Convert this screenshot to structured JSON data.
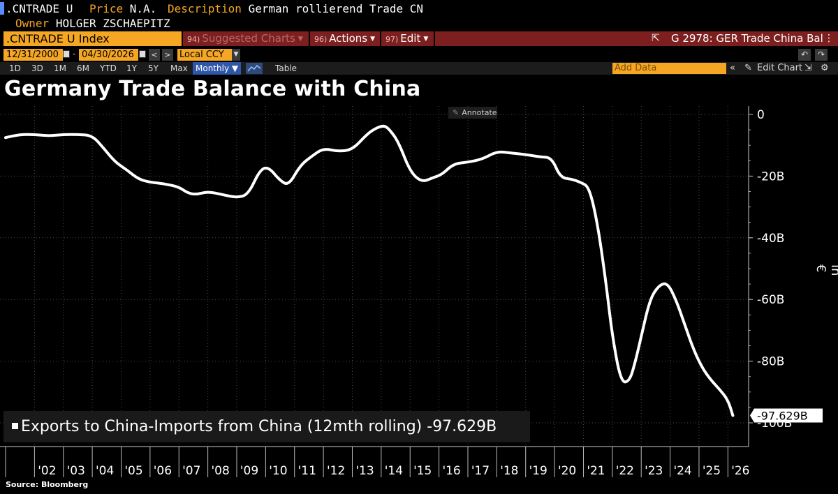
{
  "header": {
    "ticker": ".CNTRADE U",
    "price_label": "Price",
    "price_value": "N.A.",
    "description_label": "Description",
    "description_value": "German rollierend Trade CN",
    "owner_label": "Owner",
    "owner_value": "HOLGER ZSCHAEPITZ"
  },
  "command_bar": {
    "security": ".CNTRADE U Index",
    "suggested_num": "94)",
    "suggested_label": "Suggested Charts",
    "actions_num": "96)",
    "actions_label": "Actions",
    "edit_num": "97)",
    "edit_label": "Edit",
    "graph_title": "G 2978: GER Trade China Bal"
  },
  "date_range": {
    "start": "12/31/2000",
    "end": "04/30/2026",
    "currency": "Local CCY"
  },
  "periods": [
    "1D",
    "3D",
    "1M",
    "6M",
    "YTD",
    "1Y",
    "5Y",
    "Max"
  ],
  "frequency": "Monthly",
  "table_label": "Table",
  "add_data_placeholder": "Add Data",
  "edit_chart_label": "Edit Chart",
  "annotate_label": "Annotate",
  "source": "Source: Bloomberg",
  "colors": {
    "accent": "#f5a623",
    "menu_bar": "#7d1f1f",
    "line": "#ffffff",
    "background": "#000000"
  },
  "chart_data": {
    "type": "line",
    "title": "Germany Trade Balance with China",
    "ylabel": "in €",
    "ylim": [
      -100,
      0
    ],
    "yticks": [
      0,
      -20,
      -40,
      -60,
      -80,
      -100
    ],
    "ytick_labels": [
      "0",
      "-20B",
      "-40B",
      "-60B",
      "-80B",
      "-100B"
    ],
    "xtick_labels": [
      "'02",
      "'03",
      "'04",
      "'05",
      "'06",
      "'07",
      "'08",
      "'09",
      "'10",
      "'11",
      "'12",
      "'13",
      "'14",
      "'15",
      "'16",
      "'17",
      "'18",
      "'19",
      "'20",
      "'21",
      "'22",
      "'23",
      "'24",
      "'25",
      "'26"
    ],
    "xlim": [
      2001.0,
      2026.33
    ],
    "grid": true,
    "series": [
      {
        "name": "Exports to China-Imports from China (12mth rolling)",
        "last_value_label": "-97.629B",
        "x": [
          2001.0,
          2001.5,
          2002.0,
          2002.5,
          2003.0,
          2003.5,
          2004.0,
          2004.4,
          2004.8,
          2005.2,
          2005.6,
          2006.0,
          2006.5,
          2007.0,
          2007.3,
          2007.6,
          2008.0,
          2008.5,
          2009.0,
          2009.4,
          2009.8,
          2010.1,
          2010.5,
          2010.8,
          2011.2,
          2011.6,
          2012.0,
          2012.5,
          2013.0,
          2013.5,
          2013.8,
          2014.1,
          2014.3,
          2014.6,
          2015.0,
          2015.4,
          2015.8,
          2016.1,
          2016.5,
          2017.0,
          2017.5,
          2018.0,
          2018.5,
          2019.0,
          2019.5,
          2019.9,
          2020.2,
          2020.6,
          2020.9,
          2021.2,
          2021.5,
          2021.8,
          2022.0,
          2022.3,
          2022.6,
          2022.8,
          2023.0,
          2023.3,
          2023.6,
          2023.9,
          2024.2,
          2024.5,
          2024.8,
          2025.1,
          2025.4,
          2025.7,
          2026.0,
          2026.17
        ],
        "y": [
          -7.5,
          -6.5,
          -6.5,
          -7.0,
          -6.5,
          -6.5,
          -6.8,
          -11.0,
          -15.5,
          -18.0,
          -21.0,
          -22.0,
          -22.5,
          -23.5,
          -25.5,
          -26.0,
          -25.0,
          -26.0,
          -27.0,
          -26.0,
          -18.0,
          -17.0,
          -21.5,
          -23.0,
          -16.5,
          -13.5,
          -11.0,
          -12.0,
          -11.5,
          -6.5,
          -4.5,
          -3.5,
          -5.0,
          -9.0,
          -18.5,
          -22.0,
          -20.5,
          -19.5,
          -16.0,
          -15.5,
          -14.5,
          -12.0,
          -12.5,
          -13.0,
          -13.8,
          -14.0,
          -20.5,
          -21.0,
          -22.0,
          -23.5,
          -36.0,
          -56.0,
          -72.0,
          -87.0,
          -86.5,
          -80.0,
          -72.0,
          -60.0,
          -55.5,
          -54.5,
          -60.0,
          -68.0,
          -76.0,
          -82.0,
          -86.0,
          -89.0,
          -92.5,
          -97.629
        ]
      }
    ]
  }
}
